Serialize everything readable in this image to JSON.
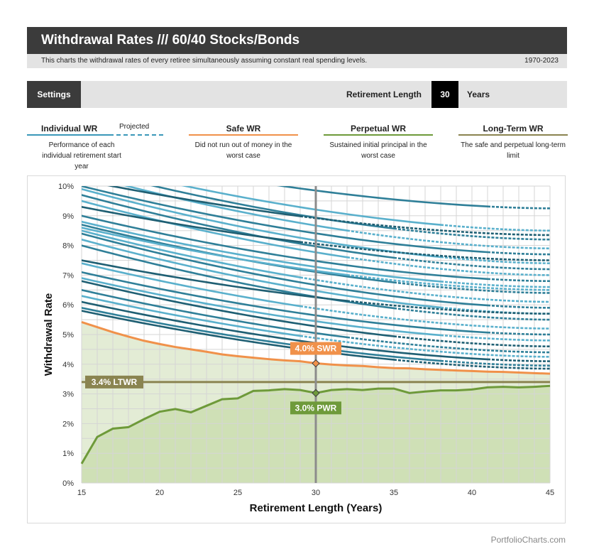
{
  "header": {
    "title": "Withdrawal Rates /// 60/40 Stocks/Bonds",
    "description": "This charts the withdrawal rates of every retiree simultaneously assuming constant real spending levels.",
    "date_range": "1970-2023"
  },
  "settings": {
    "button_label": "Settings",
    "retirement_length_label": "Retirement Length",
    "retirement_length_value": "30",
    "retirement_length_unit": "Years"
  },
  "legend": [
    {
      "title": "Individual WR",
      "extra": "Projected",
      "desc": "Performance of each individual retirement start year",
      "color": "#3a98b9"
    },
    {
      "title": "Safe WR",
      "desc": "Did not run out of money in the worst case",
      "color": "#f0914a"
    },
    {
      "title": "Perpetual WR",
      "desc": "Sustained initial principal in the worst case",
      "color": "#6e9a3a"
    },
    {
      "title": "Long-Term WR",
      "desc": "The safe and perpetual long-term limit",
      "color": "#8a8450"
    }
  ],
  "footer": "PortfolioCharts.com",
  "chart_data": {
    "type": "line",
    "xlabel": "Retirement Length (Years)",
    "ylabel": "Withdrawal Rate",
    "xlim": [
      15,
      45
    ],
    "ylim": [
      0,
      10
    ],
    "x_ticks": [
      "15",
      "20",
      "25",
      "30",
      "35",
      "40",
      "45"
    ],
    "y_ticks": [
      "0%",
      "1%",
      "2%",
      "3%",
      "4%",
      "5%",
      "6%",
      "7%",
      "8%",
      "9%",
      "10%"
    ],
    "grid": true,
    "colors": {
      "individual_dark": "#1f5f73",
      "individual_mid": "#2f7f98",
      "individual_light": "#5ab0cc",
      "swr": "#f0914a",
      "pwr": "#6e9a3a",
      "ltwr": "#8a8450",
      "cursor": "#8c8c8c"
    },
    "selected_x": 30,
    "series": [
      {
        "name": "Safe WR",
        "x": [
          15,
          16,
          17,
          18,
          19,
          20,
          21,
          22,
          23,
          24,
          25,
          26,
          27,
          28,
          29,
          30,
          31,
          32,
          33,
          34,
          35,
          36,
          37,
          38,
          39,
          40,
          41,
          42,
          43,
          44,
          45
        ],
        "values": [
          5.42,
          5.25,
          5.08,
          4.93,
          4.79,
          4.68,
          4.58,
          4.5,
          4.42,
          4.33,
          4.27,
          4.22,
          4.17,
          4.13,
          4.1,
          4.03,
          3.99,
          3.96,
          3.94,
          3.9,
          3.87,
          3.86,
          3.83,
          3.81,
          3.79,
          3.77,
          3.75,
          3.74,
          3.72,
          3.7,
          3.68
        ]
      },
      {
        "name": "Perpetual WR",
        "x": [
          15,
          16,
          17,
          18,
          19,
          20,
          21,
          22,
          23,
          24,
          25,
          26,
          27,
          28,
          29,
          30,
          31,
          32,
          33,
          34,
          35,
          36,
          37,
          38,
          39,
          40,
          41,
          42,
          43,
          44,
          45
        ],
        "values": [
          0.65,
          1.55,
          1.83,
          1.88,
          2.15,
          2.4,
          2.49,
          2.38,
          2.6,
          2.82,
          2.85,
          3.1,
          3.12,
          3.16,
          3.13,
          3.03,
          3.13,
          3.16,
          3.13,
          3.18,
          3.18,
          3.03,
          3.08,
          3.12,
          3.12,
          3.15,
          3.22,
          3.24,
          3.22,
          3.24,
          3.27
        ]
      },
      {
        "name": "Long-Term WR",
        "x": [
          15,
          45
        ],
        "values": [
          3.4,
          3.4
        ]
      }
    ],
    "individual_series": [
      {
        "start": 11.2,
        "end": 9.25,
        "shade": "mid"
      },
      {
        "start": 10.8,
        "end": 8.5,
        "shade": "light"
      },
      {
        "start": 10.6,
        "end": 8.2,
        "shade": "mid"
      },
      {
        "start": 10.4,
        "end": 7.9,
        "shade": "light"
      },
      {
        "start": 10.2,
        "end": 8.35,
        "shade": "dark"
      },
      {
        "start": 10.0,
        "end": 7.7,
        "shade": "mid"
      },
      {
        "start": 9.9,
        "end": 7.4,
        "shade": "light"
      },
      {
        "start": 9.7,
        "end": 7.2,
        "shade": "mid"
      },
      {
        "start": 9.5,
        "end": 7.0,
        "shade": "light"
      },
      {
        "start": 9.3,
        "end": 7.5,
        "shade": "dark"
      },
      {
        "start": 9.0,
        "end": 6.8,
        "shade": "mid"
      },
      {
        "start": 8.8,
        "end": 6.6,
        "shade": "light"
      },
      {
        "start": 8.7,
        "end": 6.4,
        "shade": "mid"
      },
      {
        "start": 8.6,
        "end": 6.5,
        "shade": "light"
      },
      {
        "start": 8.5,
        "end": 6.1,
        "shade": "light"
      },
      {
        "start": 8.4,
        "end": 5.9,
        "shade": "mid"
      },
      {
        "start": 8.2,
        "end": 5.7,
        "shade": "light"
      },
      {
        "start": 8.0,
        "end": 5.5,
        "shade": "mid"
      },
      {
        "start": 7.5,
        "end": 5.7,
        "shade": "dark"
      },
      {
        "start": 7.4,
        "end": 5.2,
        "shade": "light"
      },
      {
        "start": 7.1,
        "end": 5.0,
        "shade": "mid"
      },
      {
        "start": 6.9,
        "end": 4.8,
        "shade": "light"
      },
      {
        "start": 6.8,
        "end": 4.6,
        "shade": "dark"
      },
      {
        "start": 6.5,
        "end": 4.4,
        "shade": "mid"
      },
      {
        "start": 6.3,
        "end": 4.25,
        "shade": "light"
      },
      {
        "start": 6.1,
        "end": 4.1,
        "shade": "dark"
      },
      {
        "start": 5.9,
        "end": 3.95,
        "shade": "mid"
      },
      {
        "start": 5.8,
        "end": 3.85,
        "shade": "dark"
      }
    ],
    "annotations": [
      {
        "label": "4.0%  SWR",
        "x": 30,
        "y": 4.03,
        "color": "#f0914a"
      },
      {
        "label": "3.0%  PWR",
        "x": 30,
        "y": 3.03,
        "color": "#6e9a3a"
      },
      {
        "label": "3.4%  LTWR",
        "x": 15,
        "y": 3.4,
        "color": "#8a8450"
      }
    ]
  }
}
